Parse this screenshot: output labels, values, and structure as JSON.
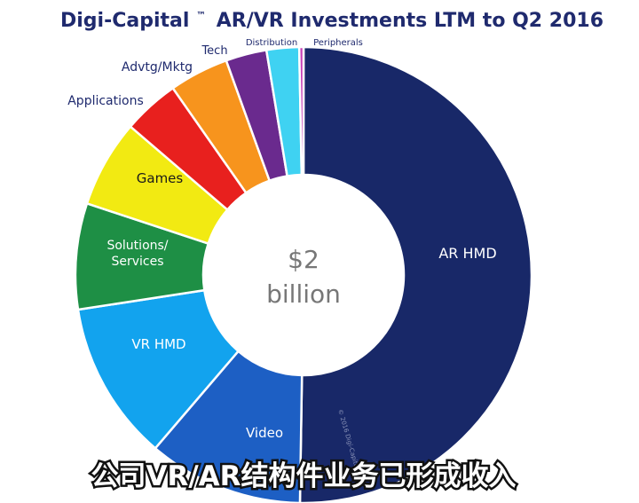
{
  "chart_data": {
    "type": "pie",
    "title": {
      "brand": "Digi-Capital",
      "trademark": "™",
      "text": "AR/VR Investments LTM to Q2 2016"
    },
    "center_text": [
      "$2",
      "billion"
    ],
    "units": "share of total (%)",
    "slices": [
      {
        "name": "AR HMD",
        "value": 50.2,
        "color": "#182868",
        "label_color": "#ffffff"
      },
      {
        "name": "Video",
        "value": 11.0,
        "color": "#1d5fc4",
        "label_color": "#ffffff"
      },
      {
        "name": "VR HMD",
        "value": 11.3,
        "color": "#12a3ee",
        "label_color": "#ffffff"
      },
      {
        "name": "Solutions/ Services",
        "value": 7.5,
        "color": "#1e8f45",
        "label_color": "#ffffff"
      },
      {
        "name": "Games",
        "value": 6.2,
        "color": "#f2ea12",
        "label_color": "#1a1a1a"
      },
      {
        "name": "Applications",
        "value": 4.0,
        "color": "#e8201e",
        "label_color": "#1f2a6e"
      },
      {
        "name": "Advtg/Mktg",
        "value": 4.2,
        "color": "#f7941d",
        "label_color": "#1f2a6e"
      },
      {
        "name": "Tech",
        "value": 2.9,
        "color": "#6a2a8e",
        "label_color": "#1f2a6e"
      },
      {
        "name": "Distribution",
        "value": 2.3,
        "color": "#3fd2f2",
        "label_color": "#1f2a6e"
      },
      {
        "name": "Peripherals",
        "value": 0.3,
        "color": "#c83fb7",
        "label_color": "#1f2a6e"
      }
    ],
    "watermark": "© 2016 Digi-Capital"
  },
  "caption": "公司VR/AR结构件业务已形成收入"
}
